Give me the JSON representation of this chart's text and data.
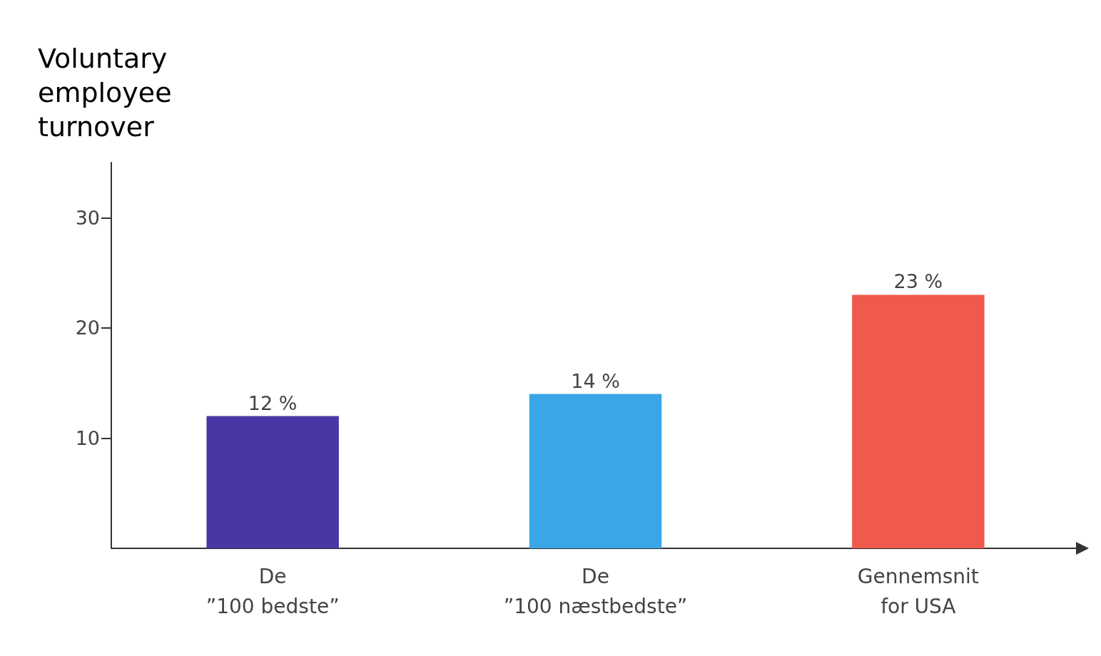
{
  "chart_data": {
    "type": "bar",
    "ylabel": "Voluntary\nemployee\nturnover",
    "categories": [
      "De\n”100 bedste”",
      "De\n”100 næstbedste”",
      "Gennemsnit\nfor USA"
    ],
    "values": [
      12,
      14,
      23
    ],
    "colors": [
      "#4a37a6",
      "#3aa6e8",
      "#ef5a4c"
    ],
    "value_labels": [
      "12 %",
      "14 %",
      "23 %"
    ],
    "ylim": [
      0,
      35
    ],
    "yticks": [
      10,
      20,
      30
    ],
    "grid": false
  }
}
